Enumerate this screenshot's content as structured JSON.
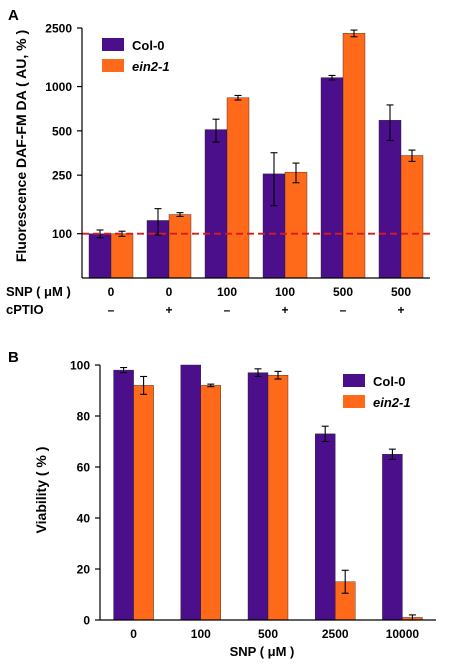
{
  "colors": {
    "col0": "#4B0F8C",
    "ein2": "#FF6A1A",
    "refline": "#D81B1B",
    "axis": "#000000"
  },
  "chart_data": [
    {
      "panel_label": "A",
      "type": "bar",
      "y_scale": "log",
      "ylim": [
        50,
        2500
      ],
      "yticks": [
        100,
        250,
        500,
        1000,
        2500
      ],
      "ylabel": "Fluorescence DAF-FM DA ( AU, % )",
      "categories": [
        "0",
        "0",
        "100",
        "100",
        "500",
        "500"
      ],
      "x_row_labels": [
        {
          "label": "SNP ( μM )",
          "values": [
            "0",
            "0",
            "100",
            "100",
            "500",
            "500"
          ]
        },
        {
          "label": "cPTIO",
          "values": [
            "–",
            "+",
            "–",
            "+",
            "–",
            "+"
          ]
        }
      ],
      "series": [
        {
          "name": "Col-0",
          "color_key": "col0",
          "values": [
            100,
            123,
            510,
            255,
            1150,
            590
          ],
          "errors": [
            6,
            25,
            90,
            100,
            40,
            160
          ]
        },
        {
          "name": "ein2-1",
          "color_key": "ein2",
          "values": [
            100,
            135,
            840,
            262,
            2300,
            340
          ],
          "errors": [
            4,
            4,
            30,
            40,
            120,
            30
          ]
        }
      ],
      "reference_line": 100,
      "legend_position": "top-left"
    },
    {
      "panel_label": "B",
      "type": "bar",
      "y_scale": "linear",
      "ylim": [
        0,
        100
      ],
      "yticks": [
        0,
        20,
        40,
        60,
        80,
        100
      ],
      "ylabel": "Viability ( % )",
      "xlabel": "SNP ( μM )",
      "categories": [
        "0",
        "100",
        "500",
        "2500",
        "10000"
      ],
      "series": [
        {
          "name": "Col-0",
          "color_key": "col0",
          "values": [
            98,
            100,
            97,
            73,
            65
          ],
          "errors": [
            1,
            0,
            1.5,
            3,
            2
          ]
        },
        {
          "name": "ein2-1",
          "color_key": "ein2",
          "values": [
            92,
            92,
            96,
            15,
            1
          ],
          "errors": [
            3.5,
            0.5,
            1.5,
            4.5,
            1
          ]
        }
      ],
      "legend_position": "top-right"
    }
  ]
}
